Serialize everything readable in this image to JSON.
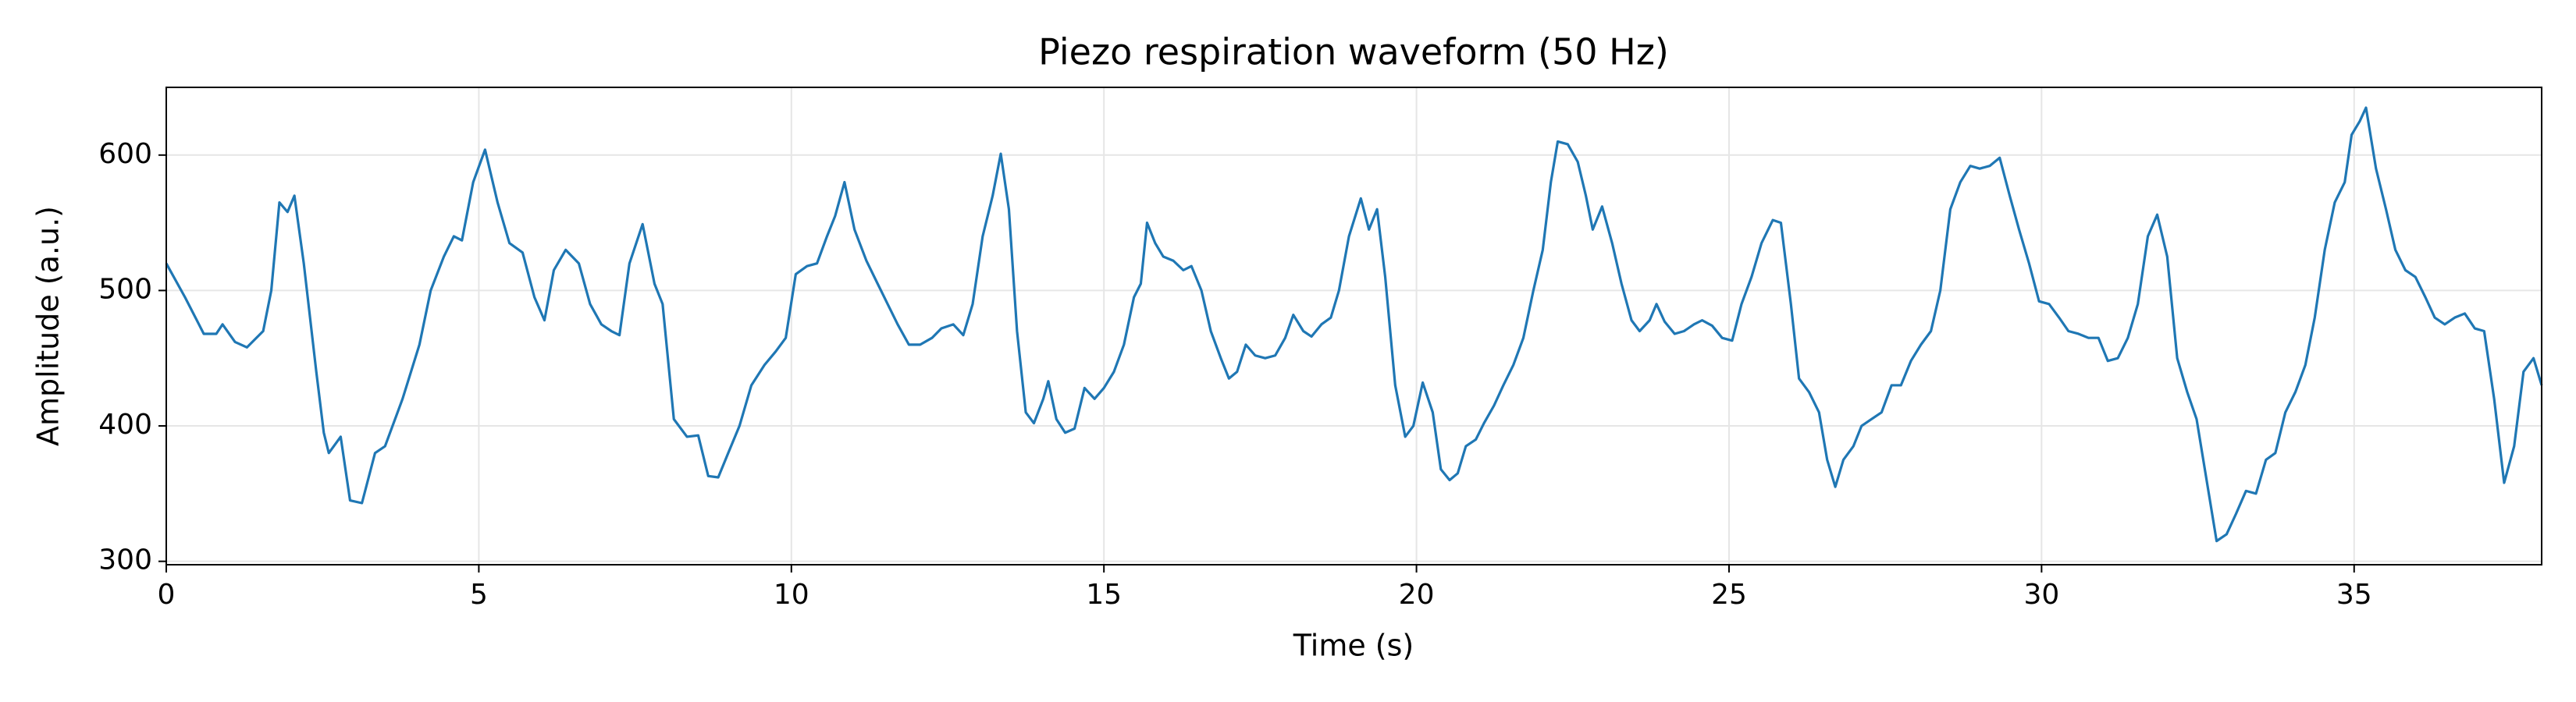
{
  "chart_data": {
    "type": "line",
    "title": "Piezo respiration waveform (50 Hz)",
    "xlabel": "Time (s)",
    "ylabel": "Amplitude (a.u.)",
    "color": "#1f77b4",
    "grid": true,
    "xlim": [
      0,
      38
    ],
    "ylim": [
      297.5,
      650
    ],
    "xticks": [
      0,
      5,
      10,
      15,
      20,
      25,
      30,
      35
    ],
    "yticks": [
      300,
      400,
      500,
      600
    ],
    "x": [
      0,
      0.3,
      0.6,
      0.8,
      0.9,
      1.1,
      1.29,
      1.55,
      1.68,
      1.81,
      1.94,
      2.05,
      2.2,
      2.4,
      2.52,
      2.6,
      2.79,
      2.94,
      3.13,
      3.34,
      3.5,
      3.78,
      4.05,
      4.23,
      4.44,
      4.6,
      4.73,
      4.91,
      5.1,
      5.3,
      5.49,
      5.7,
      5.89,
      6.05,
      6.2,
      6.39,
      6.6,
      6.78,
      6.96,
      7.12,
      7.25,
      7.41,
      7.62,
      7.81,
      7.94,
      8.12,
      8.33,
      8.51,
      8.67,
      8.83,
      8.99,
      9.17,
      9.36,
      9.57,
      9.75,
      9.91,
      10.07,
      10.25,
      10.41,
      10.57,
      10.7,
      10.85,
      11.01,
      11.2,
      11.38,
      11.54,
      11.7,
      11.88,
      12.06,
      12.25,
      12.4,
      12.59,
      12.75,
      12.9,
      13.06,
      13.22,
      13.35,
      13.48,
      13.61,
      13.75,
      13.88,
      14.03,
      14.11,
      14.24,
      14.38,
      14.53,
      14.69,
      14.85,
      15.0,
      15.16,
      15.32,
      15.48,
      15.59,
      15.69,
      15.82,
      15.95,
      16.11,
      16.27,
      16.4,
      16.56,
      16.71,
      16.87,
      17.0,
      17.13,
      17.27,
      17.42,
      17.58,
      17.74,
      17.9,
      18.03,
      18.19,
      18.32,
      18.48,
      18.63,
      18.76,
      18.92,
      19.11,
      19.24,
      19.37,
      19.5,
      19.66,
      19.82,
      19.95,
      20.1,
      20.26,
      20.39,
      20.53,
      20.66,
      20.79,
      20.95,
      21.08,
      21.24,
      21.39,
      21.55,
      21.71,
      21.87,
      22.02,
      22.15,
      22.26,
      22.42,
      22.58,
      22.71,
      22.82,
      22.97,
      23.13,
      23.28,
      23.44,
      23.57,
      23.73,
      23.84,
      23.97,
      24.13,
      24.28,
      24.44,
      24.57,
      24.73,
      24.89,
      25.05,
      25.2,
      25.36,
      25.52,
      25.7,
      25.83,
      25.99,
      26.12,
      26.28,
      26.44,
      26.57,
      26.7,
      26.83,
      26.99,
      27.12,
      27.28,
      27.44,
      27.6,
      27.75,
      27.91,
      28.07,
      28.23,
      28.38,
      28.54,
      28.7,
      28.86,
      29.01,
      29.17,
      29.33,
      29.49,
      29.64,
      29.8,
      29.96,
      30.12,
      30.28,
      30.43,
      30.59,
      30.75,
      30.91,
      31.06,
      31.22,
      31.38,
      31.54,
      31.7,
      31.85,
      32.01,
      32.17,
      32.33,
      32.48,
      32.64,
      32.8,
      32.96,
      33.11,
      33.27,
      33.43,
      33.59,
      33.74,
      33.9,
      34.06,
      34.22,
      34.37,
      34.53,
      34.69,
      34.85,
      34.96,
      35.09,
      35.19,
      35.35,
      35.51,
      35.66,
      35.82,
      35.98,
      36.14,
      36.29,
      36.45,
      36.61,
      36.77,
      36.93,
      37.08,
      37.24,
      37.4,
      37.56,
      37.71,
      37.87,
      38.0
    ],
    "values": [
      520,
      495,
      468,
      468,
      475,
      462,
      458,
      470,
      500,
      565,
      558,
      570,
      520,
      440,
      395,
      380,
      392,
      345,
      343,
      380,
      385,
      420,
      460,
      500,
      525,
      540,
      537,
      580,
      604,
      565,
      535,
      528,
      495,
      478,
      515,
      530,
      520,
      490,
      475,
      470,
      467,
      520,
      549,
      505,
      490,
      405,
      392,
      393,
      363,
      362,
      380,
      400,
      430,
      445,
      455,
      465,
      512,
      518,
      520,
      540,
      555,
      580,
      545,
      522,
      505,
      490,
      475,
      460,
      460,
      465,
      472,
      475,
      467,
      490,
      540,
      570,
      601,
      560,
      470,
      410,
      402,
      420,
      433,
      405,
      395,
      398,
      428,
      420,
      428,
      440,
      460,
      495,
      505,
      550,
      535,
      525,
      522,
      515,
      518,
      500,
      470,
      450,
      435,
      440,
      460,
      452,
      450,
      452,
      465,
      482,
      470,
      466,
      475,
      480,
      500,
      540,
      568,
      545,
      560,
      510,
      430,
      392,
      400,
      432,
      410,
      368,
      360,
      365,
      385,
      390,
      402,
      415,
      430,
      445,
      465,
      500,
      530,
      580,
      610,
      608,
      595,
      570,
      545,
      562,
      535,
      505,
      478,
      470,
      478,
      490,
      477,
      468,
      470,
      475,
      478,
      474,
      465,
      463,
      490,
      510,
      535,
      552,
      550,
      490,
      435,
      425,
      410,
      375,
      355,
      375,
      385,
      400,
      405,
      410,
      430,
      430,
      448,
      460,
      470,
      500,
      560,
      580,
      592,
      590,
      592,
      598,
      570,
      545,
      520,
      492,
      490,
      480,
      470,
      468,
      465,
      465,
      448,
      450,
      465,
      490,
      540,
      556,
      525,
      450,
      425,
      405,
      360,
      315,
      320,
      335,
      352,
      350,
      375,
      380,
      410,
      425,
      445,
      480,
      530,
      565,
      580,
      615,
      625,
      635,
      590,
      560,
      530,
      515,
      510,
      495,
      480,
      475,
      480,
      483,
      472,
      470,
      420,
      358,
      385,
      440,
      450,
      430
    ]
  }
}
